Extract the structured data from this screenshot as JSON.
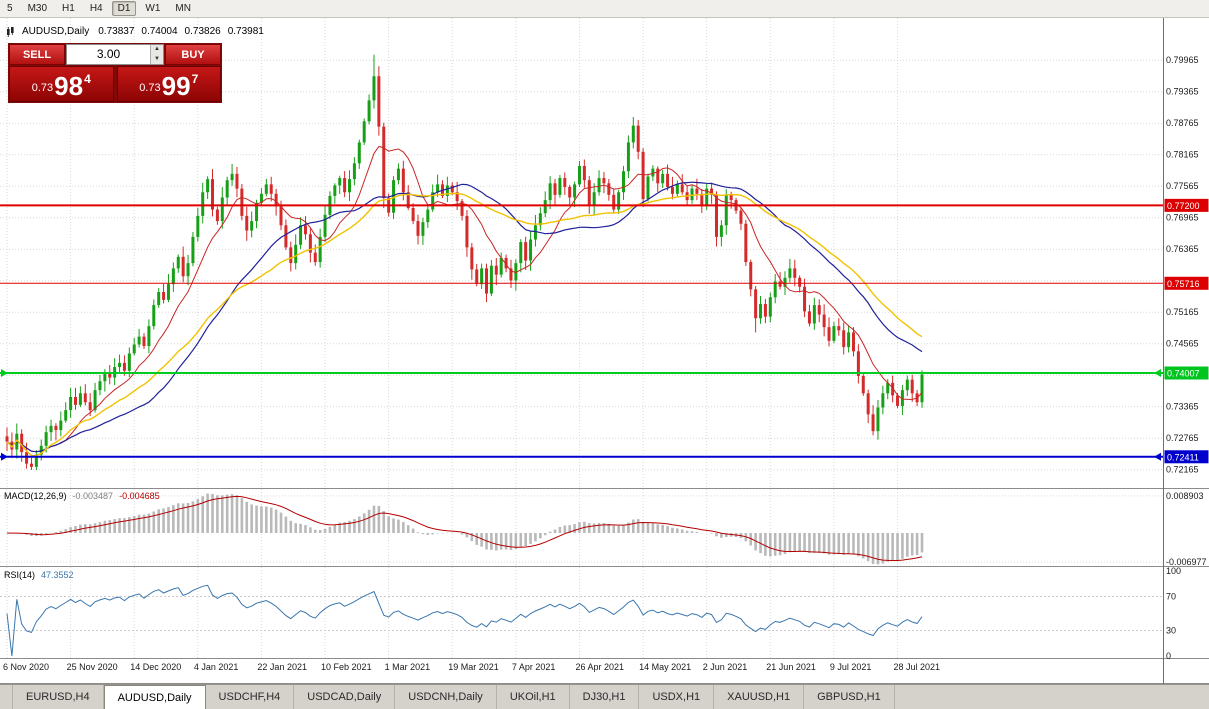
{
  "toolbar": {
    "timeframes": [
      {
        "label": "5",
        "active": false
      },
      {
        "label": "M30",
        "active": false
      },
      {
        "label": "H1",
        "active": false
      },
      {
        "label": "H4",
        "active": false
      },
      {
        "label": "D1",
        "active": true
      },
      {
        "label": "W1",
        "active": false
      },
      {
        "label": "MN",
        "active": false
      }
    ]
  },
  "header": {
    "symbol": "AUDUSD,Daily",
    "open": "0.73837",
    "high": "0.74004",
    "low": "0.73826",
    "close": "0.73981"
  },
  "trade_panel": {
    "sell_label": "SELL",
    "buy_label": "BUY",
    "volume": "3.00",
    "bid": {
      "prefix": "0.73",
      "big": "98",
      "sup": "4"
    },
    "ask": {
      "prefix": "0.73",
      "big": "99",
      "sup": "7"
    }
  },
  "indicators": {
    "macd": {
      "name": "MACD(12,26,9)",
      "value_main": "-0.003487",
      "value_signal": "-0.004685",
      "axis_max": "0.008903",
      "axis_min": "-0.006977",
      "fast": 12,
      "slow": 26,
      "signal": 9,
      "hist_color": "#b9b9b9",
      "line_color": "#b40000"
    },
    "rsi": {
      "name": "RSI(14)",
      "value": "47.3552",
      "period": 14,
      "levels": [
        "100",
        "70",
        "30",
        "0"
      ],
      "line_color": "#3a76af"
    }
  },
  "tabs": [
    {
      "label": "EURUSD,H4",
      "active": false
    },
    {
      "label": "AUDUSD,Daily",
      "active": true
    },
    {
      "label": "USDCHF,H4",
      "active": false
    },
    {
      "label": "USDCAD,Daily",
      "active": false
    },
    {
      "label": "USDCNH,Daily",
      "active": false
    },
    {
      "label": "UKOil,H1",
      "active": false
    },
    {
      "label": "DJ30,H1",
      "active": false
    },
    {
      "label": "USDX,H1",
      "active": false
    },
    {
      "label": "XAUUSD,H1",
      "active": false
    },
    {
      "label": "GBPUSD,H1",
      "active": false
    }
  ],
  "chart_data": {
    "type": "candlestick",
    "symbol": "AUDUSD",
    "timeframe": "Daily",
    "bars_per_label": 13,
    "x_labels": [
      "6 Nov 2020",
      "25 Nov 2020",
      "14 Dec 2020",
      "4 Jan 2021",
      "22 Jan 2021",
      "10 Feb 2021",
      "1 Mar 2021",
      "19 Mar 2021",
      "7 Apr 2021",
      "26 Apr 2021",
      "14 May 2021",
      "2 Jun 2021",
      "21 Jun 2021",
      "9 Jul 2021",
      "28 Jul 2021"
    ],
    "price_axis": {
      "top": 0.79965,
      "step": 0.006,
      "count": 14,
      "decimals": 5
    },
    "ylim": [
      0.7182,
      0.8077
    ],
    "up_color": "#17a017",
    "down_color": "#d42a2a",
    "closes": [
      0.727,
      0.7255,
      0.7285,
      0.725,
      0.7228,
      0.7222,
      0.7245,
      0.7262,
      0.7288,
      0.73,
      0.7292,
      0.731,
      0.733,
      0.7355,
      0.734,
      0.7362,
      0.7345,
      0.733,
      0.7368,
      0.7385,
      0.74,
      0.7392,
      0.7412,
      0.742,
      0.7405,
      0.7438,
      0.7455,
      0.747,
      0.7452,
      0.749,
      0.753,
      0.7555,
      0.754,
      0.757,
      0.76,
      0.7622,
      0.7585,
      0.761,
      0.766,
      0.77,
      0.7745,
      0.777,
      0.7712,
      0.769,
      0.7735,
      0.7768,
      0.778,
      0.7752,
      0.77,
      0.7672,
      0.769,
      0.7725,
      0.7742,
      0.776,
      0.7742,
      0.7718,
      0.7682,
      0.764,
      0.761,
      0.7645,
      0.7682,
      0.7665,
      0.763,
      0.7612,
      0.766,
      0.7702,
      0.7738,
      0.7758,
      0.7772,
      0.7745,
      0.777,
      0.78,
      0.784,
      0.788,
      0.792,
      0.7966,
      0.787,
      0.7734,
      0.7706,
      0.7768,
      0.779,
      0.7745,
      0.7715,
      0.769,
      0.7662,
      0.7688,
      0.7712,
      0.7745,
      0.776,
      0.7738,
      0.7758,
      0.7745,
      0.7728,
      0.77,
      0.764,
      0.7598,
      0.757,
      0.76,
      0.7552,
      0.7605,
      0.7588,
      0.762,
      0.76,
      0.7577,
      0.761,
      0.765,
      0.7615,
      0.7655,
      0.7682,
      0.7705,
      0.773,
      0.7762,
      0.774,
      0.7772,
      0.7755,
      0.7735,
      0.776,
      0.7795,
      0.7768,
      0.772,
      0.7745,
      0.7772,
      0.7762,
      0.774,
      0.7712,
      0.7745,
      0.7785,
      0.784,
      0.7872,
      0.7822,
      0.7732,
      0.7775,
      0.779,
      0.7762,
      0.778,
      0.7755,
      0.7742,
      0.776,
      0.7745,
      0.773,
      0.7752,
      0.7742,
      0.7718,
      0.7752,
      0.774,
      0.766,
      0.7682,
      0.774,
      0.773,
      0.771,
      0.7685,
      0.7612,
      0.756,
      0.7505,
      0.7532,
      0.7508,
      0.7545,
      0.7575,
      0.7565,
      0.7582,
      0.76,
      0.7582,
      0.7565,
      0.7518,
      0.7495,
      0.753,
      0.7512,
      0.7488,
      0.7462,
      0.749,
      0.7482,
      0.745,
      0.7478,
      0.7442,
      0.7395,
      0.7362,
      0.7322,
      0.729,
      0.7335,
      0.7362,
      0.7382,
      0.7358,
      0.7338,
      0.7368,
      0.7388,
      0.7362,
      0.7345,
      0.7398
    ],
    "high_overrides": {
      "75": 0.8007
    },
    "low_overrides": {
      "153": 0.7478,
      "177": 0.7282
    },
    "ma_overlays": [
      {
        "period": 10,
        "type": "sma",
        "color": "#c92525",
        "width": 1
      },
      {
        "period": 30,
        "type": "sma",
        "color": "#20209a",
        "width": 1.2
      },
      {
        "period": 55,
        "type": "lwma",
        "color": "#f2c200",
        "width": 1.4
      }
    ],
    "hlines": [
      {
        "value": 0.772,
        "label": "0.77200",
        "color": "#e00000",
        "width": 2,
        "badge_bg": "#dd0000",
        "badge_fg": "#ffffff",
        "arrows": false
      },
      {
        "value": 0.75716,
        "label": "0.75716",
        "color": "#e00000",
        "width": 1,
        "badge_bg": "#dd0000",
        "badge_fg": "#ffffff",
        "arrows": false
      },
      {
        "value": 0.74007,
        "label": "0.74007",
        "color": "#00cc22",
        "width": 2,
        "badge_bg": "#00c51e",
        "badge_fg": "#ffffff",
        "arrows": true
      },
      {
        "value": 0.72411,
        "label": "0.72411",
        "color": "#0000cc",
        "width": 2,
        "badge_bg": "#0000cc",
        "badge_fg": "#ffffff",
        "arrows": true
      }
    ]
  }
}
